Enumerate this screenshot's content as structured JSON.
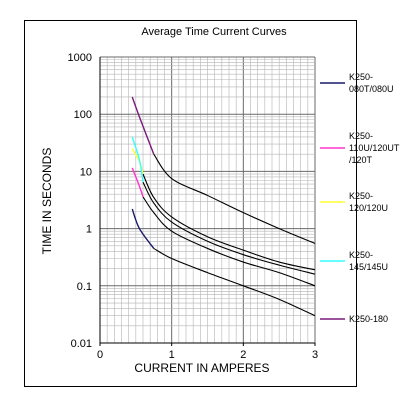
{
  "chart_data": {
    "type": "line",
    "title": "Average Time Current Curves",
    "xlabel": "CURRENT IN AMPERES",
    "ylabel": "TIME IN SECONDS",
    "xlim": [
      0,
      3
    ],
    "ylim": [
      0.01,
      1000
    ],
    "yscale": "log",
    "grid": true,
    "legend_position": "right",
    "x_ticks": [
      "0",
      "1",
      "2",
      "3"
    ],
    "y_ticks": [
      "0.01",
      "0.1",
      "1",
      "10",
      "100",
      "1000"
    ],
    "series": [
      {
        "name": "K250-080T/080U",
        "color": "#1a1a6e",
        "label_lines": [
          "K250-",
          "080T/080U"
        ],
        "points": [
          [
            0.45,
            2.2
          ],
          [
            0.55,
            1.0
          ],
          [
            0.75,
            0.45
          ],
          [
            1.0,
            0.3
          ],
          [
            1.5,
            0.17
          ],
          [
            2.0,
            0.1
          ],
          [
            2.5,
            0.058
          ],
          [
            3.0,
            0.03
          ]
        ]
      },
      {
        "name": "K250-110U/120UT/120T",
        "color": "#ff33cc",
        "label_lines": [
          "K250-",
          "110U/120UT",
          "/120T"
        ],
        "points": [
          [
            0.45,
            11.5
          ],
          [
            0.55,
            5.5
          ],
          [
            0.6,
            3.6
          ],
          [
            0.75,
            1.9
          ],
          [
            1.0,
            0.9
          ],
          [
            1.5,
            0.45
          ],
          [
            2.0,
            0.26
          ],
          [
            2.5,
            0.17
          ],
          [
            3.0,
            0.1
          ]
        ]
      },
      {
        "name": "K250-120/120U",
        "color": "#ffff33",
        "label_lines": [
          "K250-",
          "120/120U"
        ],
        "points": [
          [
            0.45,
            25
          ],
          [
            0.55,
            15
          ],
          [
            0.6,
            9
          ],
          [
            0.75,
            3.5
          ],
          [
            1.0,
            1.6
          ],
          [
            1.5,
            0.72
          ],
          [
            2.0,
            0.42
          ],
          [
            2.5,
            0.26
          ],
          [
            3.0,
            0.19
          ]
        ]
      },
      {
        "name": "K250-145/145U",
        "color": "#33ffff",
        "label_lines": [
          "K250-",
          "145/145U"
        ],
        "points": [
          [
            0.45,
            40
          ],
          [
            0.55,
            16
          ],
          [
            0.6,
            6.5
          ],
          [
            0.75,
            2.8
          ],
          [
            1.0,
            1.3
          ],
          [
            1.5,
            0.6
          ],
          [
            2.0,
            0.35
          ],
          [
            2.5,
            0.23
          ],
          [
            3.0,
            0.16
          ]
        ]
      },
      {
        "name": "K250-180",
        "color": "#7a1a7a",
        "label_lines": [
          "K250-180"
        ],
        "points": [
          [
            0.45,
            200
          ],
          [
            0.55,
            90
          ],
          [
            0.75,
            20
          ],
          [
            1.0,
            7.5
          ],
          [
            1.5,
            3.8
          ],
          [
            2.0,
            1.9
          ],
          [
            2.5,
            1.0
          ],
          [
            3.0,
            0.55
          ]
        ]
      }
    ]
  }
}
